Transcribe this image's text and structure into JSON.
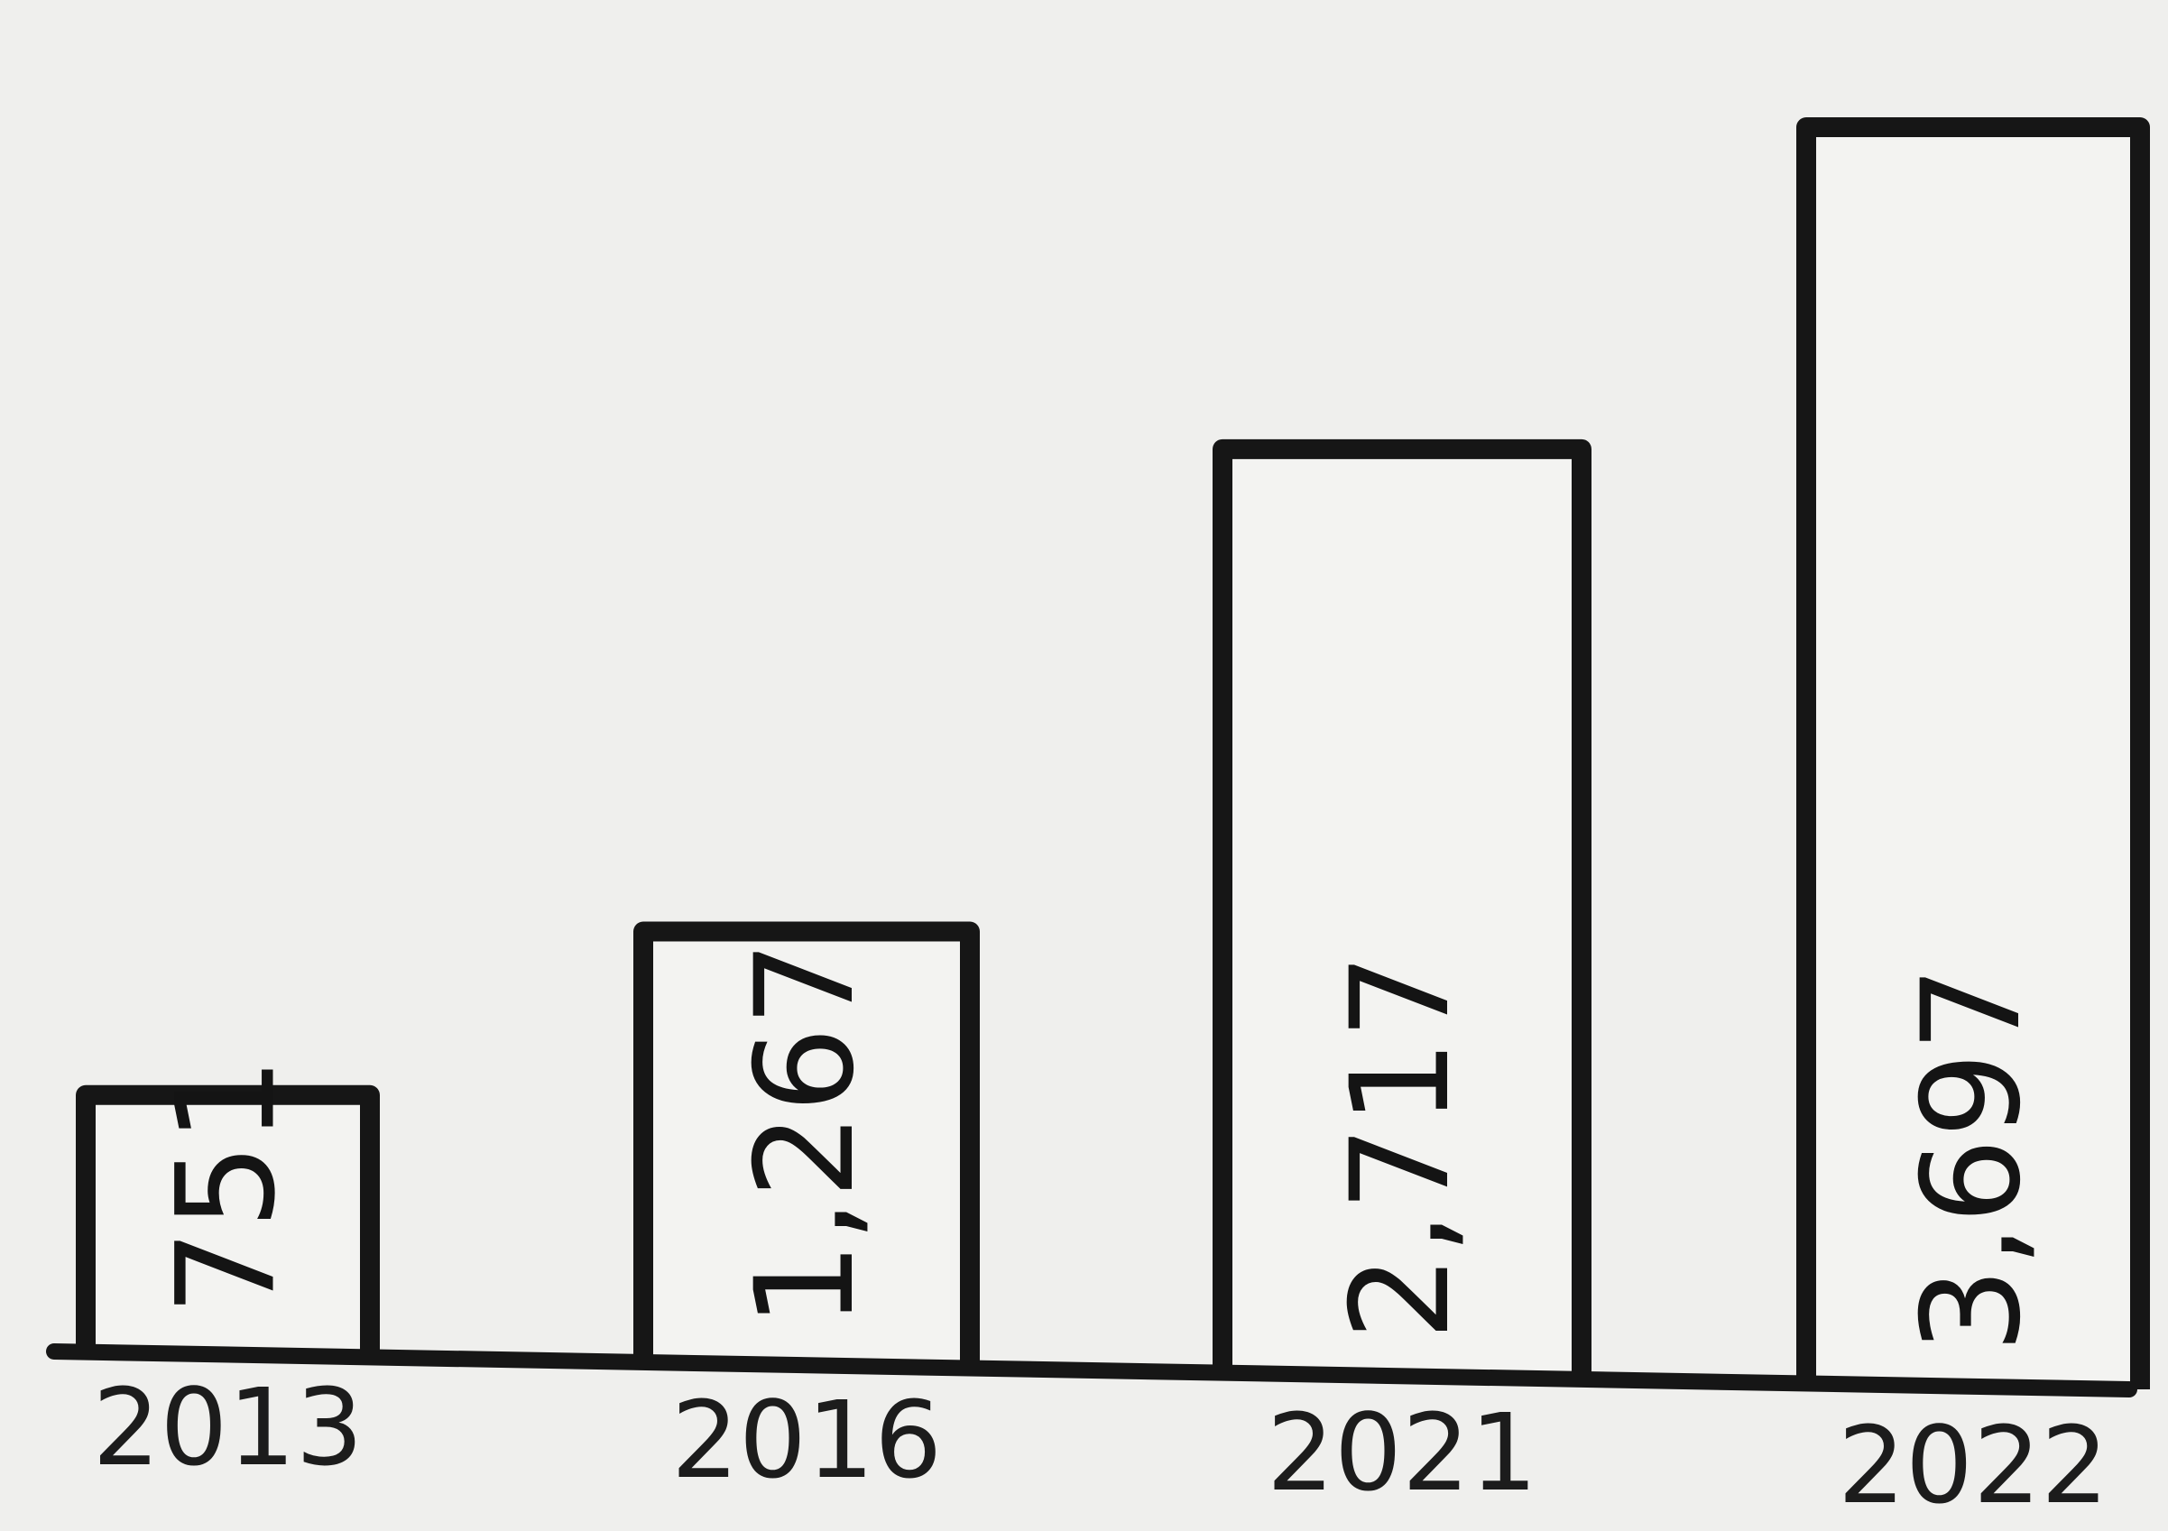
{
  "chart_data": {
    "type": "bar",
    "categories": [
      "2013",
      "2016",
      "2021",
      "2022"
    ],
    "values": [
      751,
      1267,
      2717,
      3697
    ],
    "value_labels": [
      "751",
      "1,267",
      "2,717",
      "3,697"
    ],
    "title": "",
    "xlabel": "",
    "ylabel": "",
    "ylim": [
      0,
      3800
    ],
    "grid": false,
    "legend": "none",
    "colors": {
      "paper": "#efefed",
      "ink": "#161616"
    }
  }
}
